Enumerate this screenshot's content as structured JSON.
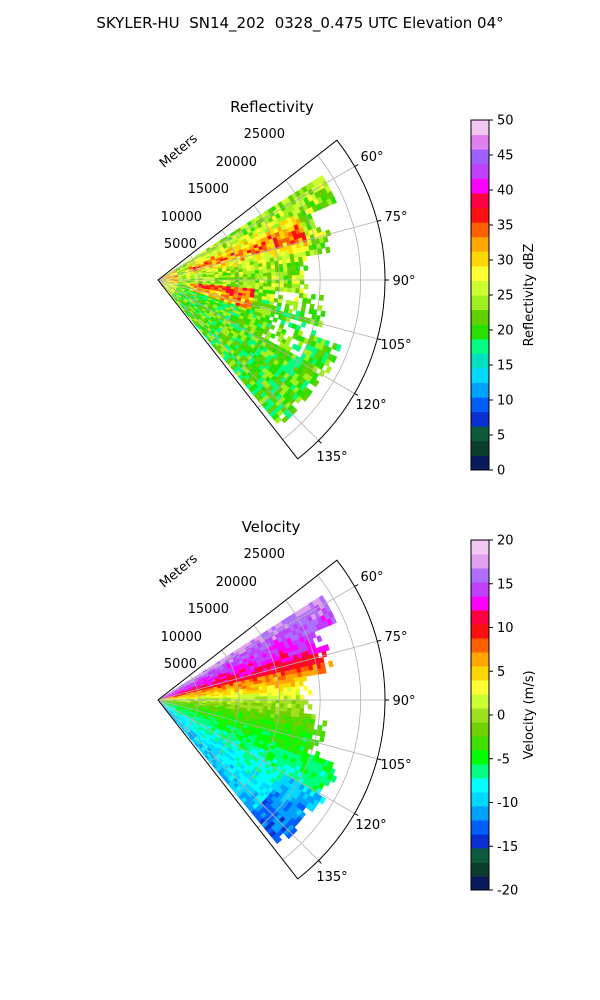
{
  "figure": {
    "title": "SKYLER-HU  SN14_202  0328_0.475 UTC Elevation 04°"
  },
  "chart_data": [
    {
      "type": "heatmap",
      "projection": "polar-sector",
      "title": "Reflectivity",
      "radial_label": "Meters",
      "radial_ticks": [
        "5000",
        "10000",
        "15000",
        "20000",
        "25000"
      ],
      "range_max_m": 28000,
      "angle_ticks": [
        "60°",
        "75°",
        "90°",
        "105°",
        "120°",
        "135°"
      ],
      "angle_range_deg": [
        52,
        142
      ],
      "grid": true,
      "colorbar": {
        "label": "Reflectivity dBZ",
        "range": [
          0,
          50
        ],
        "ticks": [
          "0",
          "5",
          "10",
          "15",
          "20",
          "25",
          "30",
          "35",
          "40",
          "45",
          "50"
        ]
      },
      "field_summary": "Returns mostly 20-30 dBZ across sector, cores of 35-45 dBZ near 70-80° and 100-105° within 5-18 km"
    },
    {
      "type": "heatmap",
      "projection": "polar-sector",
      "title": "Velocity",
      "radial_label": "Meters",
      "radial_ticks": [
        "5000",
        "10000",
        "15000",
        "20000",
        "25000"
      ],
      "range_max_m": 28000,
      "angle_ticks": [
        "60°",
        "75°",
        "90°",
        "105°",
        "120°",
        "135°"
      ],
      "angle_range_deg": [
        52,
        142
      ],
      "grid": true,
      "colorbar": {
        "label": "Velocity (m/s)",
        "range": [
          -20,
          20
        ],
        "ticks": [
          "-20",
          "-15",
          "-10",
          "-5",
          "0",
          "5",
          "10",
          "15",
          "20"
        ]
      },
      "field_summary": "Outbound 10-17 m/s at 58-80°, near 0 m/s around 90°, inbound -5 to -12 m/s at 105-140°"
    }
  ],
  "colormaps": {
    "reflectivity": [
      "#0a1a5a",
      "#0b3d2e",
      "#0d5a3a",
      "#0a2fd0",
      "#0060ff",
      "#00a0ff",
      "#00d8ff",
      "#00e0c0",
      "#00ff80",
      "#28e000",
      "#60d000",
      "#a0f020",
      "#ccff33",
      "#ffff33",
      "#ffd700",
      "#ffa500",
      "#ff6000",
      "#ff1010",
      "#ff0040",
      "#ff00ff",
      "#c040ff",
      "#a060ff",
      "#e080f0",
      "#f4c6f4"
    ],
    "velocity": [
      "#0a1a5a",
      "#0b3d2e",
      "#0d5a3a",
      "#0a2fd0",
      "#0060ff",
      "#00a0ff",
      "#00d8ff",
      "#00ffff",
      "#00ff80",
      "#00ff00",
      "#40e000",
      "#70d000",
      "#a0e020",
      "#ccff33",
      "#ffff33",
      "#ffd700",
      "#ffa500",
      "#ff6000",
      "#ff1010",
      "#ff0040",
      "#ff00ff",
      "#c040ff",
      "#b070ff",
      "#e0a0f0",
      "#f4c6f4"
    ]
  }
}
